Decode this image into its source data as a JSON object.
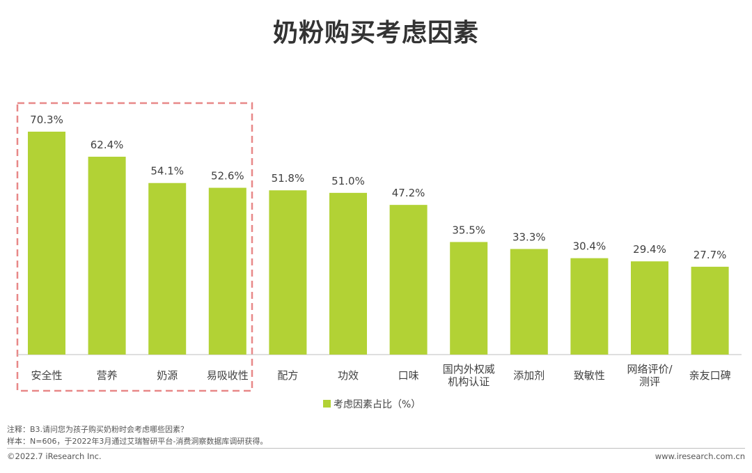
{
  "title": "奶粉购买考虑因素",
  "chart_data": {
    "type": "bar",
    "categories": [
      "安全性",
      "营养",
      "奶源",
      "易吸收性",
      "配方",
      "功效",
      "口味",
      "国内外权威机构认证",
      "添加剂",
      "致敏性",
      "网络评价/测评",
      "亲友口碑"
    ],
    "category_lines": [
      [
        "安全性"
      ],
      [
        "营养"
      ],
      [
        "奶源"
      ],
      [
        "易吸收性"
      ],
      [
        "配方"
      ],
      [
        "功效"
      ],
      [
        "口味"
      ],
      [
        "国内外权威",
        "机构认证"
      ],
      [
        "添加剂"
      ],
      [
        "致敏性"
      ],
      [
        "网络评价/",
        "测评"
      ],
      [
        "亲友口碑"
      ]
    ],
    "values": [
      70.3,
      62.4,
      54.1,
      52.6,
      51.8,
      51.0,
      47.2,
      35.5,
      33.3,
      30.4,
      29.4,
      27.7
    ],
    "value_labels": [
      "70.3%",
      "62.4%",
      "54.1%",
      "52.6%",
      "51.8%",
      "51.0%",
      "47.2%",
      "35.5%",
      "33.3%",
      "30.4%",
      "29.4%",
      "27.7%"
    ],
    "legend": "考虑因素占比（%）",
    "legend_position": "bottom",
    "bar_color": "#b2d235",
    "highlight_color": "#e88888",
    "highlighted_categories": [
      "安全性",
      "营养",
      "奶源",
      "易吸收性"
    ],
    "ylim": [
      0,
      75
    ],
    "grid": false
  },
  "footer": {
    "note": "注释：B3.请问您为孩子购买奶粉时会考虑哪些因素？",
    "sample": "样本：N=606，于2022年3月通过艾瑞智研平台-消费洞察数据库调研获得。",
    "copyright": "©2022.7 iResearch Inc.",
    "website": "www.iresearch.com.cn"
  }
}
